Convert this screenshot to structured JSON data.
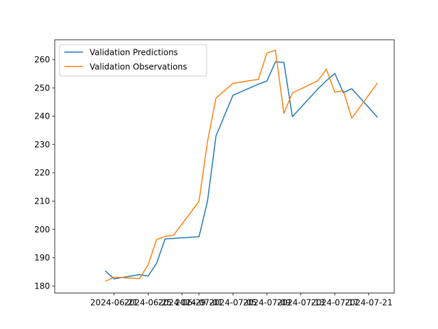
{
  "chart_data": {
    "type": "line",
    "grid": false,
    "legend_position": "upper left",
    "xlim": [
      "2024-06-14",
      "2024-07-24"
    ],
    "ylim": [
      177.5,
      267
    ],
    "x_ticks": [
      "2024-06-21",
      "2024-06-25",
      "2024-06-29",
      "2024-07-01",
      "2024-07-05",
      "2024-07-09",
      "2024-07-13",
      "2024-07-17",
      "2024-07-21"
    ],
    "y_ticks": [
      180,
      190,
      200,
      210,
      220,
      230,
      240,
      250,
      260
    ],
    "series": [
      {
        "name": "Validation Predictions",
        "color": "#1f77b4",
        "x": [
          "2024-06-20",
          "2024-06-21",
          "2024-06-24",
          "2024-06-25",
          "2024-06-26",
          "2024-06-27",
          "2024-07-01",
          "2024-07-02",
          "2024-07-03",
          "2024-07-05",
          "2024-07-08",
          "2024-07-09",
          "2024-07-10",
          "2024-07-11",
          "2024-07-12",
          "2024-07-15",
          "2024-07-16",
          "2024-07-17",
          "2024-07-18",
          "2024-07-19",
          "2024-07-22"
        ],
        "values": [
          185.2,
          182.5,
          184.0,
          183.5,
          188.0,
          196.6,
          197.4,
          210.0,
          233.0,
          247.4,
          251.3,
          252.4,
          259.2,
          259.0,
          239.8,
          249.6,
          252.5,
          255.1,
          248.3,
          249.7,
          239.7
        ]
      },
      {
        "name": "Validation Observations",
        "color": "#ff7f0e",
        "x": [
          "2024-06-20",
          "2024-06-21",
          "2024-06-24",
          "2024-06-25",
          "2024-06-26",
          "2024-06-27",
          "2024-06-28",
          "2024-07-01",
          "2024-07-02",
          "2024-07-03",
          "2024-07-05",
          "2024-07-08",
          "2024-07-09",
          "2024-07-10",
          "2024-07-11",
          "2024-07-12",
          "2024-07-15",
          "2024-07-16",
          "2024-07-17",
          "2024-07-18",
          "2024-07-19",
          "2024-07-22"
        ],
        "values": [
          181.7,
          183.1,
          182.6,
          187.5,
          196.4,
          197.5,
          197.9,
          209.9,
          231.0,
          246.4,
          251.6,
          253.0,
          262.3,
          263.3,
          241.0,
          248.2,
          252.5,
          256.6,
          248.5,
          249.0,
          239.3,
          251.6
        ]
      }
    ]
  }
}
